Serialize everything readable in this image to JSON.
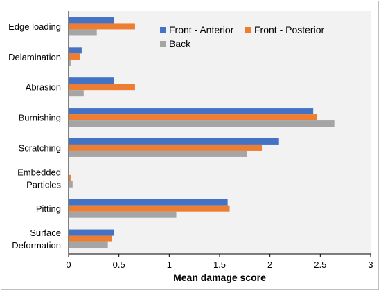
{
  "chart_data": {
    "type": "bar",
    "orientation": "horizontal",
    "categories": [
      [
        "Edge loading"
      ],
      [
        "Delamination"
      ],
      [
        "Abrasion"
      ],
      [
        "Burnishing"
      ],
      [
        "Scratching"
      ],
      [
        "Embedded",
        "Particles"
      ],
      [
        "Pitting"
      ],
      [
        "Surface",
        "Deformation"
      ]
    ],
    "series": [
      {
        "name": "Front - Anterior",
        "color": "#4472c4",
        "values": [
          0.45,
          0.13,
          0.45,
          2.43,
          2.09,
          0.0,
          1.58,
          0.45
        ]
      },
      {
        "name": "Front - Posterior",
        "color": "#ed7d31",
        "values": [
          0.66,
          0.11,
          0.66,
          2.47,
          1.92,
          0.02,
          1.6,
          0.43
        ]
      },
      {
        "name": "Back",
        "color": "#a5a5a5",
        "values": [
          0.28,
          0.02,
          0.15,
          2.64,
          1.77,
          0.04,
          1.07,
          0.39
        ]
      }
    ],
    "xlabel": "Mean damage score",
    "ylabel": "",
    "xlim": [
      0,
      3
    ],
    "xticks": [
      "0",
      "0.5",
      "1",
      "1.5",
      "2",
      "2.5",
      "3"
    ],
    "grid": false,
    "legend_position": "top-right"
  }
}
